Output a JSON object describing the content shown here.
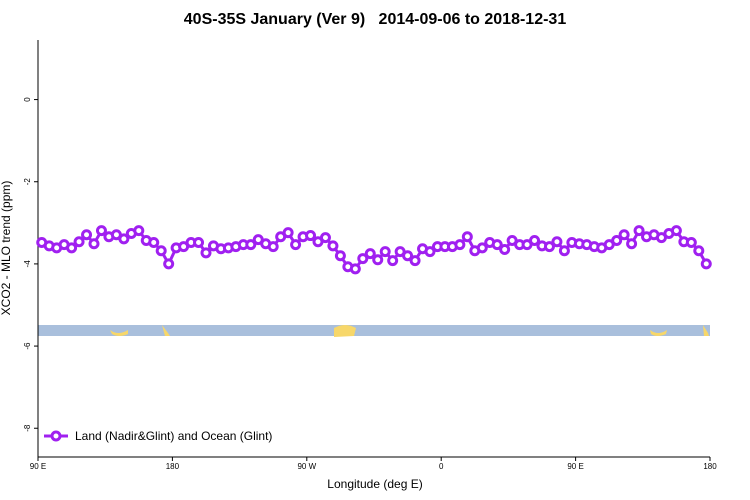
{
  "chart_data": {
    "type": "line",
    "title": "40S-35S January (Ver 9)   2014-09-06 to 2018-12-31",
    "x_label": "Longitude (deg E)",
    "y_label": "XCO2 - MLO trend (ppm)",
    "xlim": [
      90,
      540
    ],
    "ylim": [
      -8.7,
      1.45
    ],
    "xticks": [
      {
        "value": 90,
        "label": "90 E"
      },
      {
        "value": 180,
        "label": "180"
      },
      {
        "value": 270,
        "label": "90 W"
      },
      {
        "value": 360,
        "label": "0"
      },
      {
        "value": 450,
        "label": "90 E"
      },
      {
        "value": 540,
        "label": "180"
      }
    ],
    "yticks": [
      0,
      -2,
      -4,
      -6,
      -8
    ],
    "legend": "bottom-left",
    "x": [
      92.5,
      97.5,
      102.5,
      107.5,
      112.5,
      117.5,
      122.5,
      127.5,
      132.5,
      137.5,
      142.5,
      147.5,
      152.5,
      157.5,
      162.5,
      167.5,
      172.5,
      177.5,
      182.5,
      187.5,
      192.5,
      197.5,
      202.5,
      207.5,
      212.5,
      217.5,
      222.5,
      227.5,
      232.5,
      237.5,
      242.5,
      247.5,
      252.5,
      257.5,
      262.5,
      267.5,
      272.5,
      277.5,
      282.5,
      287.5,
      292.5,
      297.5,
      302.5,
      307.5,
      312.5,
      317.5,
      322.5,
      327.5,
      332.5,
      337.5,
      342.5,
      347.5,
      352.5,
      357.5,
      362.5,
      367.5,
      372.5,
      377.5,
      382.5,
      387.5,
      392.5,
      397.5,
      402.5,
      407.5,
      412.5,
      417.5,
      422.5,
      427.5,
      432.5,
      437.5,
      442.5,
      447.5,
      452.5,
      457.5,
      462.5,
      467.5,
      472.5,
      477.5,
      482.5,
      487.5,
      492.5,
      497.5,
      502.5,
      507.5,
      512.5,
      517.5,
      522.5,
      527.5,
      532.5,
      537.5
    ],
    "series": [
      {
        "name": "Land (Nadir&Glint) and Ocean (Glint)",
        "color": "#a020f0",
        "values": [
          -3.48,
          -3.56,
          -3.61,
          -3.53,
          -3.61,
          -3.46,
          -3.29,
          -3.51,
          -3.19,
          -3.34,
          -3.29,
          -3.39,
          -3.26,
          -3.19,
          -3.43,
          -3.48,
          -3.68,
          -4.0,
          -3.61,
          -3.58,
          -3.48,
          -3.48,
          -3.73,
          -3.56,
          -3.63,
          -3.61,
          -3.58,
          -3.53,
          -3.53,
          -3.41,
          -3.51,
          -3.58,
          -3.34,
          -3.24,
          -3.53,
          -3.34,
          -3.31,
          -3.46,
          -3.36,
          -3.56,
          -3.8,
          -4.07,
          -4.12,
          -3.87,
          -3.75,
          -3.9,
          -3.7,
          -3.92,
          -3.7,
          -3.8,
          -3.92,
          -3.63,
          -3.7,
          -3.58,
          -3.58,
          -3.58,
          -3.53,
          -3.34,
          -3.68,
          -3.61,
          -3.48,
          -3.53,
          -3.65,
          -3.43,
          -3.53,
          -3.53,
          -3.43,
          -3.56,
          -3.58,
          -3.46,
          -3.68,
          -3.48,
          -3.51,
          -3.53,
          -3.58,
          -3.61,
          -3.53,
          -3.43,
          -3.29,
          -3.51,
          -3.19,
          -3.34,
          -3.29,
          -3.36,
          -3.26,
          -3.19,
          -3.46,
          -3.48,
          -3.68,
          -4.0
        ]
      }
    ]
  }
}
